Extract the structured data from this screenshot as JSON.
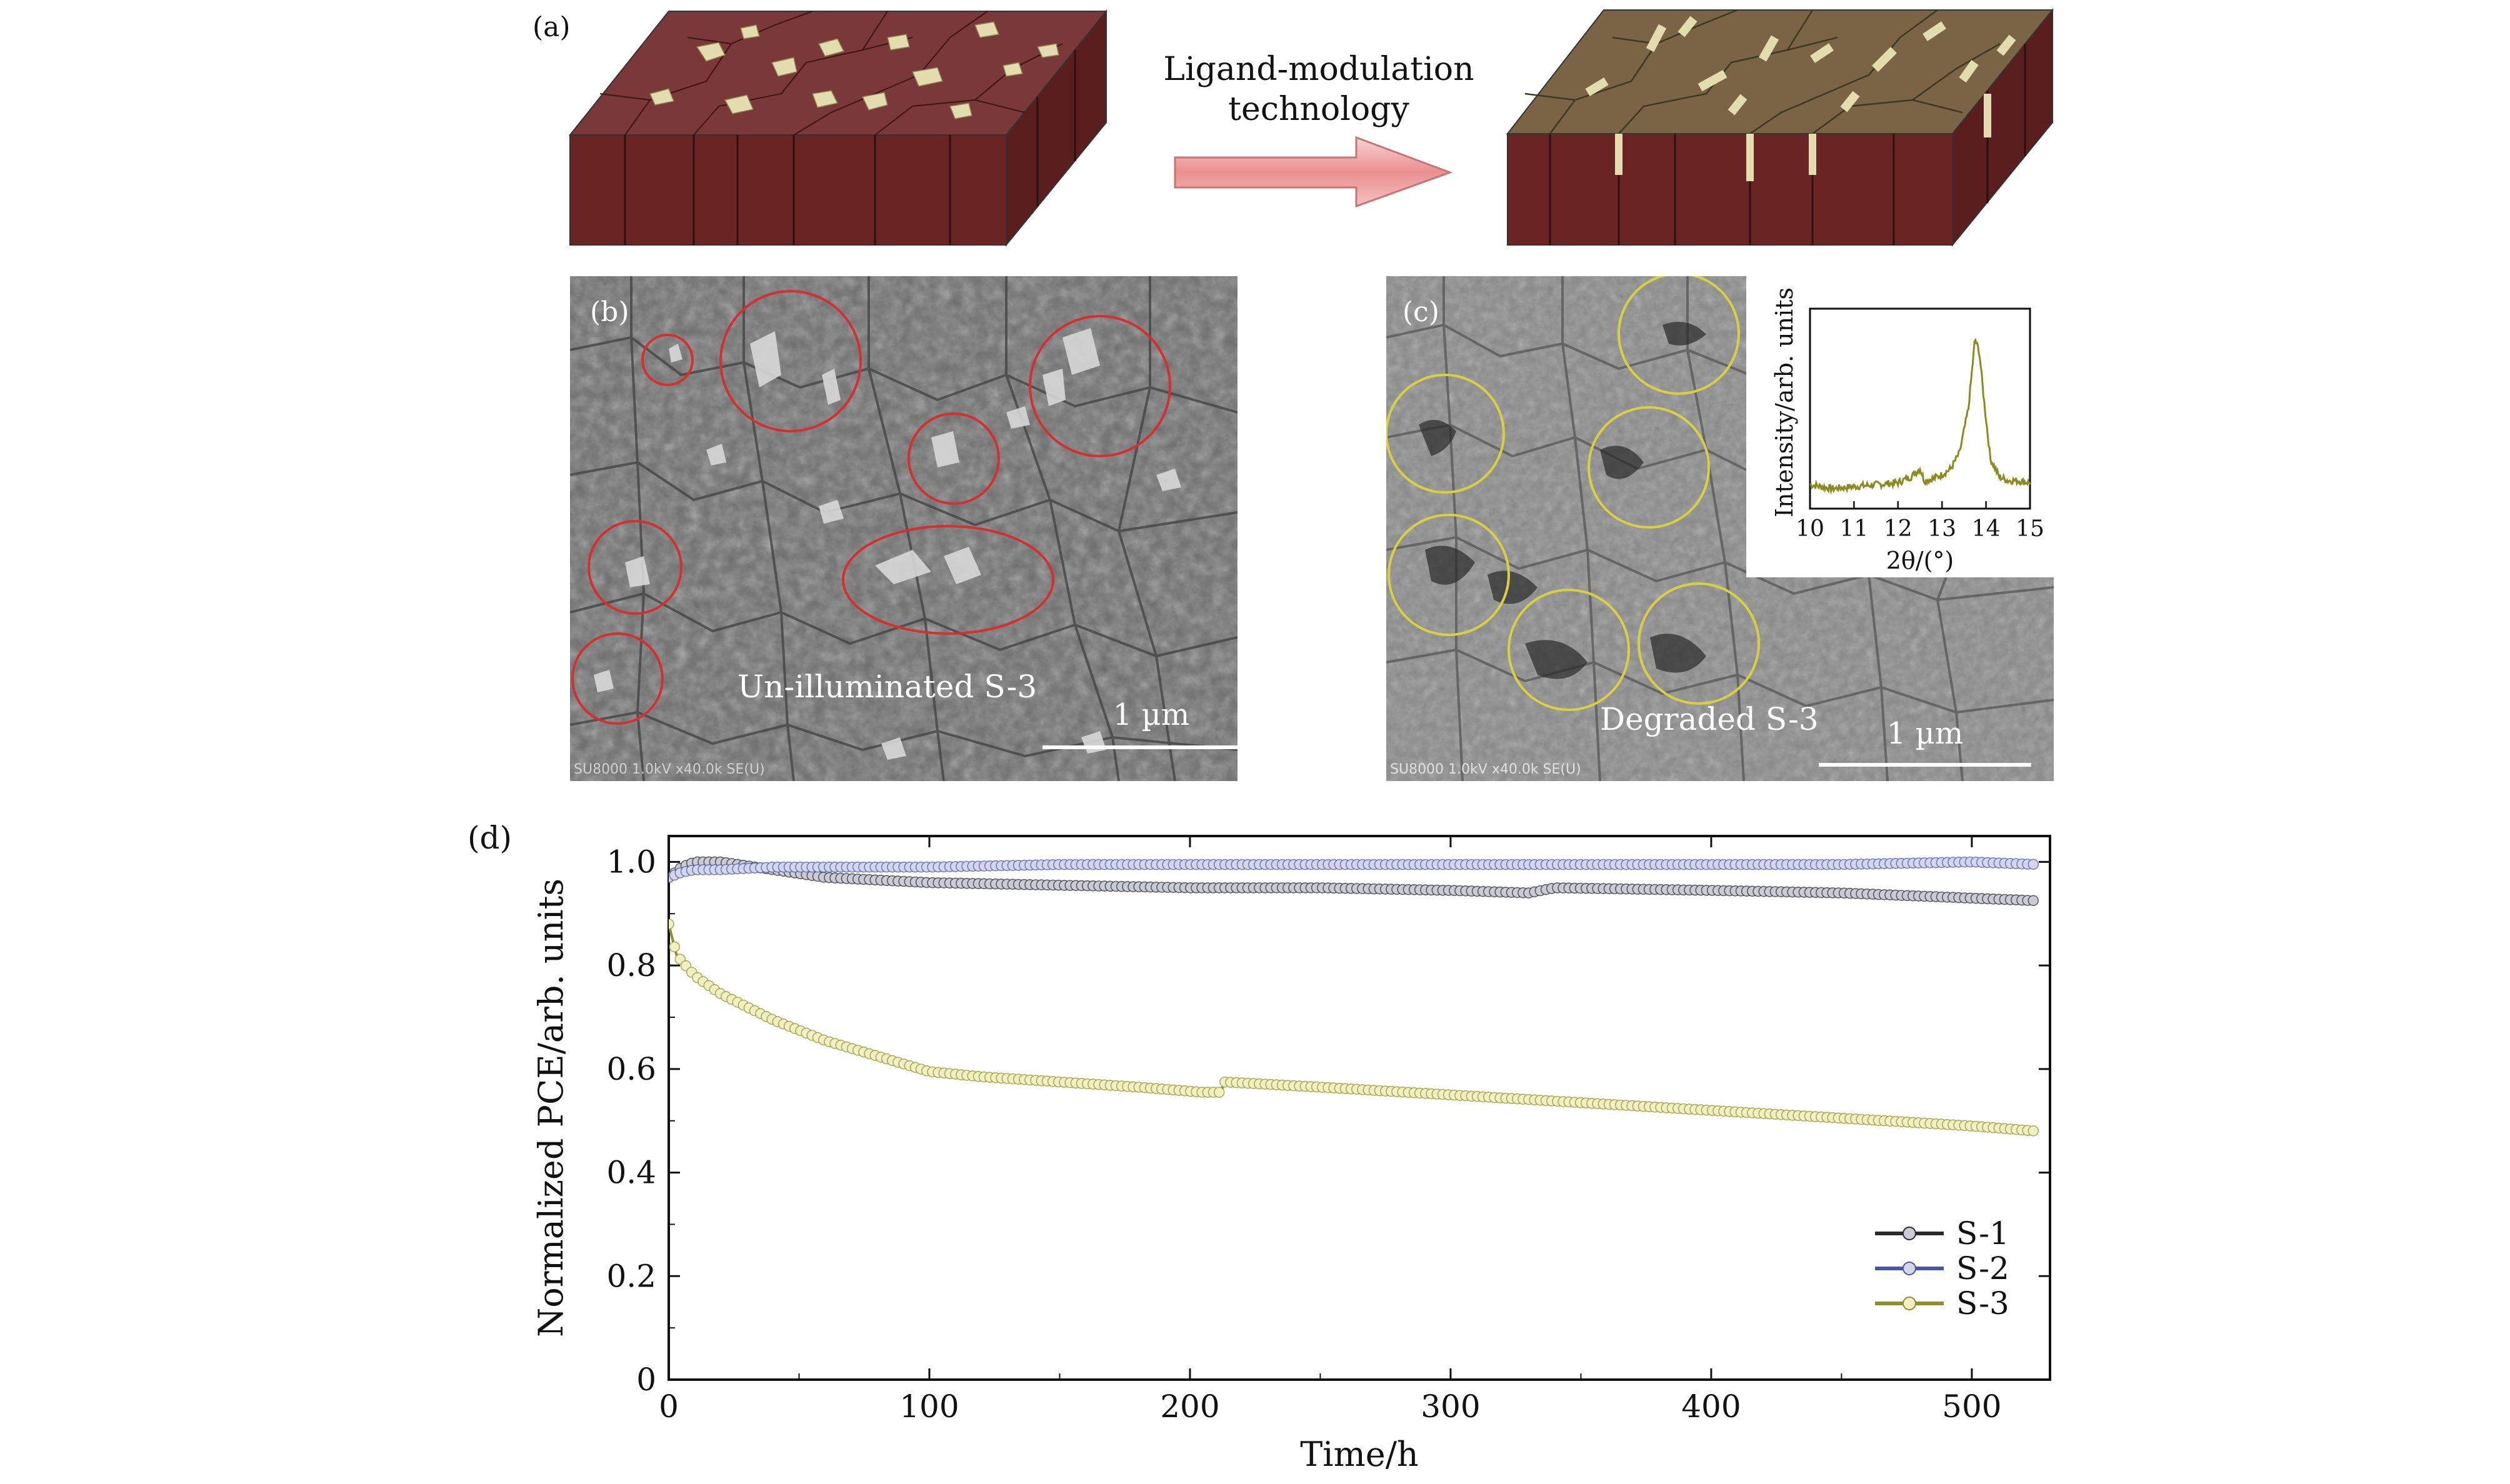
{
  "panel_a": {
    "label": "(a)",
    "arrow_text_line1": "Ligand-modulation",
    "arrow_text_line2": "technology",
    "colors": {
      "side": "#6b2424",
      "top_left": "#7a3838",
      "top_right": "#7b6446",
      "grain": "#e3dcae",
      "arrow": "#f0a4a4"
    }
  },
  "panel_b": {
    "label": "(b)",
    "caption": "Un-illuminated S-3",
    "scalebar": "1 µm",
    "meta": "SU8000 1.0kV x40.0k SE(U)",
    "circle_color": "#d43030"
  },
  "panel_c": {
    "label": "(c)",
    "caption": "Degraded S-3",
    "scalebar": "1 µm",
    "meta": "SU8000 1.0kV x40.0k SE(U)",
    "circle_color": "#d8d040"
  },
  "panel_d": {
    "label": "(d)"
  },
  "chart_data": [
    {
      "type": "line",
      "title": "",
      "xlabel": "Time/h",
      "ylabel": "Normalized PCE/arb. units",
      "xlim": [
        0,
        530
      ],
      "ylim": [
        0,
        1.05
      ],
      "xticks": [
        "0",
        "100",
        "200",
        "300",
        "400",
        "500"
      ],
      "yticks": [
        "0",
        "0.2",
        "0.4",
        "0.6",
        "0.8",
        "1.0"
      ],
      "legend_position": "bottom-right",
      "series": [
        {
          "name": "S-1",
          "color": "#2a2a2a",
          "marker_fill": "#c9ccd6",
          "x": [
            0,
            5,
            10,
            20,
            40,
            60,
            80,
            100,
            150,
            200,
            250,
            300,
            330,
            340,
            400,
            450,
            500,
            525
          ],
          "y": [
            0.97,
            0.99,
            1.0,
            1.0,
            0.985,
            0.97,
            0.965,
            0.96,
            0.955,
            0.95,
            0.95,
            0.945,
            0.94,
            0.95,
            0.945,
            0.94,
            0.93,
            0.925
          ]
        },
        {
          "name": "S-2",
          "color": "#4a55a8",
          "marker_fill": "#d4d6ec",
          "x": [
            0,
            5,
            10,
            20,
            40,
            60,
            80,
            100,
            150,
            200,
            250,
            300,
            350,
            400,
            450,
            500,
            525
          ],
          "y": [
            0.97,
            0.98,
            0.985,
            0.985,
            0.99,
            0.99,
            0.99,
            0.99,
            0.995,
            0.995,
            0.995,
            0.995,
            0.995,
            0.995,
            0.995,
            1.0,
            0.995
          ]
        },
        {
          "name": "S-3",
          "color": "#8e8e2a",
          "marker_fill": "#f0f0c4",
          "x": [
            0,
            3,
            10,
            20,
            30,
            40,
            50,
            60,
            70,
            80,
            90,
            100,
            120,
            150,
            180,
            205,
            212,
            213,
            250,
            300,
            350,
            400,
            450,
            500,
            525
          ],
          "y": [
            0.88,
            0.82,
            0.78,
            0.745,
            0.72,
            0.695,
            0.675,
            0.655,
            0.64,
            0.625,
            0.61,
            0.595,
            0.585,
            0.575,
            0.565,
            0.555,
            0.555,
            0.575,
            0.565,
            0.55,
            0.535,
            0.52,
            0.505,
            0.49,
            0.48
          ]
        }
      ]
    },
    {
      "type": "line",
      "title": "",
      "xlabel": "2θ/(°)",
      "ylabel": "Intensity/arb. units",
      "xlim": [
        10,
        15
      ],
      "ylim": [
        0,
        1
      ],
      "xticks": [
        "10",
        "11",
        "12",
        "13",
        "14",
        "15"
      ],
      "series": [
        {
          "name": "",
          "color": "#8a8a20",
          "x": [
            10,
            10.5,
            11,
            11.5,
            12,
            12.3,
            12.5,
            12.6,
            12.8,
            13,
            13.2,
            13.4,
            13.6,
            13.75,
            13.85,
            13.95,
            14.1,
            14.3,
            14.5,
            14.7,
            15
          ],
          "y": [
            0.12,
            0.1,
            0.11,
            0.12,
            0.13,
            0.16,
            0.2,
            0.14,
            0.15,
            0.17,
            0.2,
            0.28,
            0.5,
            0.85,
            0.78,
            0.55,
            0.25,
            0.16,
            0.14,
            0.14,
            0.13
          ]
        }
      ]
    }
  ]
}
